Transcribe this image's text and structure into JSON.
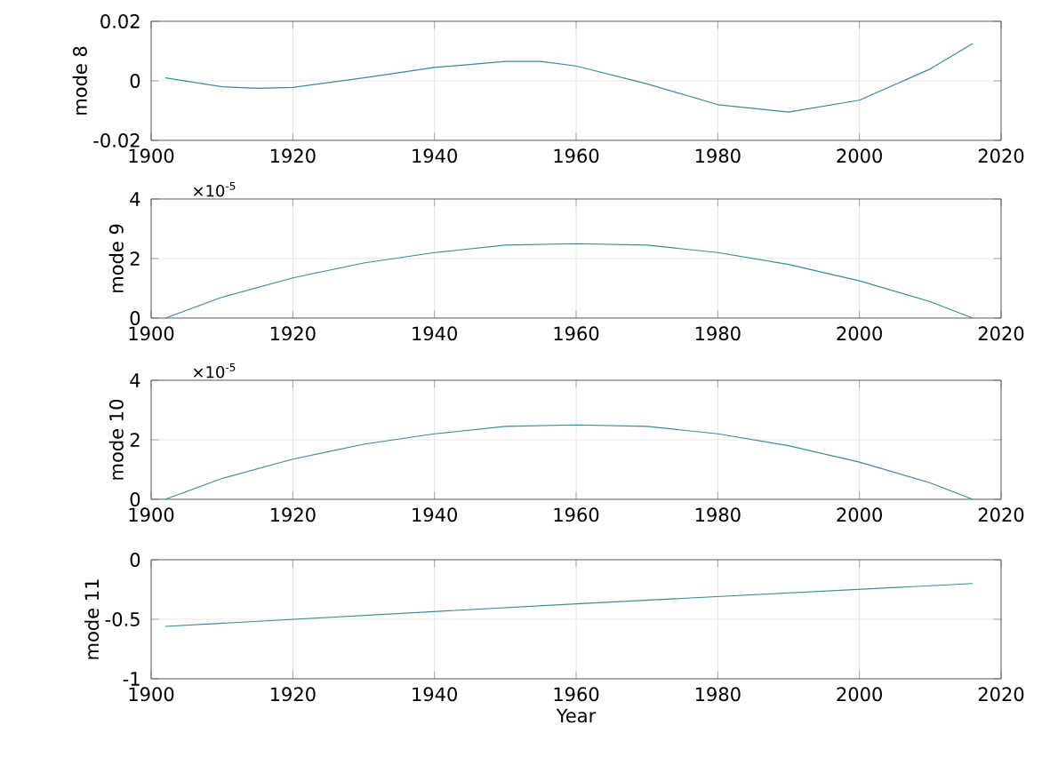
{
  "chart_data": [
    {
      "type": "line",
      "ylabel": "mode 8",
      "xlim": [
        1900,
        2020
      ],
      "xticks": [
        1900,
        1920,
        1940,
        1960,
        1980,
        2000,
        2020
      ],
      "ylim": [
        -0.02,
        0.02
      ],
      "yticks": [
        -0.02,
        0,
        0.02
      ],
      "grid": true,
      "x": [
        1902,
        1910,
        1915,
        1920,
        1930,
        1940,
        1950,
        1955,
        1960,
        1970,
        1980,
        1990,
        2000,
        2010,
        2016
      ],
      "series": [
        {
          "color": "#3a8a9a",
          "values": [
            0.001,
            -0.002,
            -0.0025,
            -0.0022,
            0.001,
            0.0045,
            0.0065,
            0.0065,
            0.005,
            -0.001,
            -0.008,
            -0.0105,
            -0.0065,
            0.004,
            0.0125
          ]
        }
      ]
    },
    {
      "type": "line",
      "ylabel": "mode 9",
      "annotations": [
        "×10$^{-5}$"
      ],
      "xlim": [
        1900,
        2020
      ],
      "xticks": [
        1900,
        1920,
        1940,
        1960,
        1980,
        2000,
        2020
      ],
      "ylim": [
        0,
        4
      ],
      "yticks": [
        0,
        2,
        4
      ],
      "grid": true,
      "x": [
        1902,
        1910,
        1920,
        1930,
        1940,
        1950,
        1960,
        1970,
        1980,
        1990,
        2000,
        2010,
        2016
      ],
      "series": [
        {
          "color": "#3a8a9a",
          "values": [
            0,
            0.7,
            1.35,
            1.85,
            2.2,
            2.45,
            2.5,
            2.45,
            2.2,
            1.8,
            1.25,
            0.55,
            0
          ]
        }
      ]
    },
    {
      "type": "line",
      "ylabel": "mode 10",
      "annotations": [
        "×10$^{-5}$"
      ],
      "xlim": [
        1900,
        2020
      ],
      "xticks": [
        1900,
        1920,
        1940,
        1960,
        1980,
        2000,
        2020
      ],
      "ylim": [
        0,
        4
      ],
      "yticks": [
        0,
        2,
        4
      ],
      "grid": true,
      "x": [
        1902,
        1910,
        1920,
        1930,
        1940,
        1950,
        1960,
        1970,
        1980,
        1990,
        2000,
        2010,
        2016
      ],
      "series": [
        {
          "color": "#3a8a9a",
          "values": [
            0,
            0.7,
            1.35,
            1.85,
            2.2,
            2.45,
            2.5,
            2.45,
            2.2,
            1.8,
            1.25,
            0.55,
            0
          ]
        }
      ]
    },
    {
      "type": "line",
      "ylabel": "mode 11",
      "xlabel": "Year",
      "xlim": [
        1900,
        2020
      ],
      "xticks": [
        1900,
        1920,
        1940,
        1960,
        1980,
        2000,
        2020
      ],
      "ylim": [
        -1,
        0
      ],
      "yticks": [
        -1,
        -0.5,
        0
      ],
      "grid": true,
      "x": [
        1902,
        1960,
        2016
      ],
      "series": [
        {
          "color": "#3a8a9a",
          "values": [
            -0.56,
            -0.37,
            -0.2
          ]
        }
      ]
    }
  ]
}
